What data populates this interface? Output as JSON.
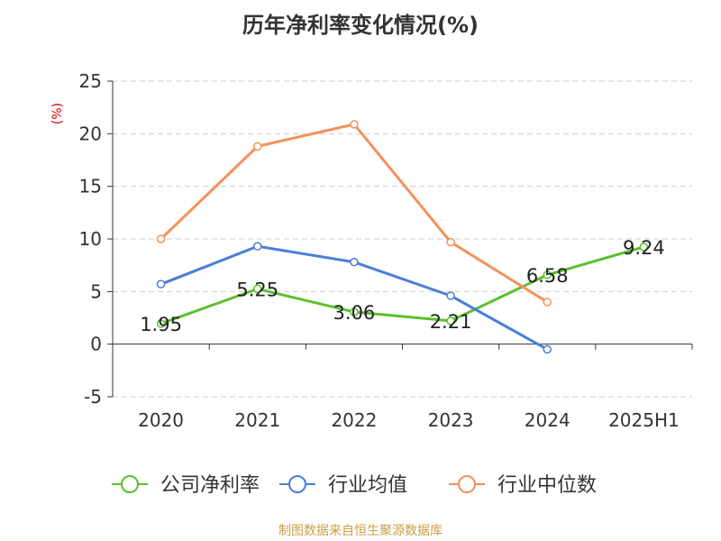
{
  "chart_data": {
    "type": "line",
    "title": "历年净利率变化情况(%)",
    "ylabel": "(%)",
    "categories": [
      "2020",
      "2021",
      "2022",
      "2023",
      "2024",
      "2025H1"
    ],
    "ylim": [
      -5,
      25
    ],
    "yticks": [
      -5,
      0,
      5,
      10,
      15,
      20,
      25
    ],
    "grid": true,
    "legend_position": "bottom",
    "series": [
      {
        "name": "公司净利率",
        "color": "#5ac02c",
        "values": [
          1.95,
          5.25,
          3.06,
          2.21,
          6.58,
          9.24
        ],
        "labels": [
          "1.95",
          "5.25",
          "3.06",
          "2.21",
          "6.58",
          "9.24"
        ]
      },
      {
        "name": "行业均值",
        "color": "#4a7fd8",
        "values": [
          5.7,
          9.3,
          7.8,
          4.6,
          -0.5,
          null
        ]
      },
      {
        "name": "行业中位数",
        "color": "#f5905a",
        "values": [
          10.0,
          18.8,
          20.9,
          9.7,
          4.0,
          null
        ]
      }
    ]
  },
  "source": "制图数据来自恒生聚源数据库"
}
